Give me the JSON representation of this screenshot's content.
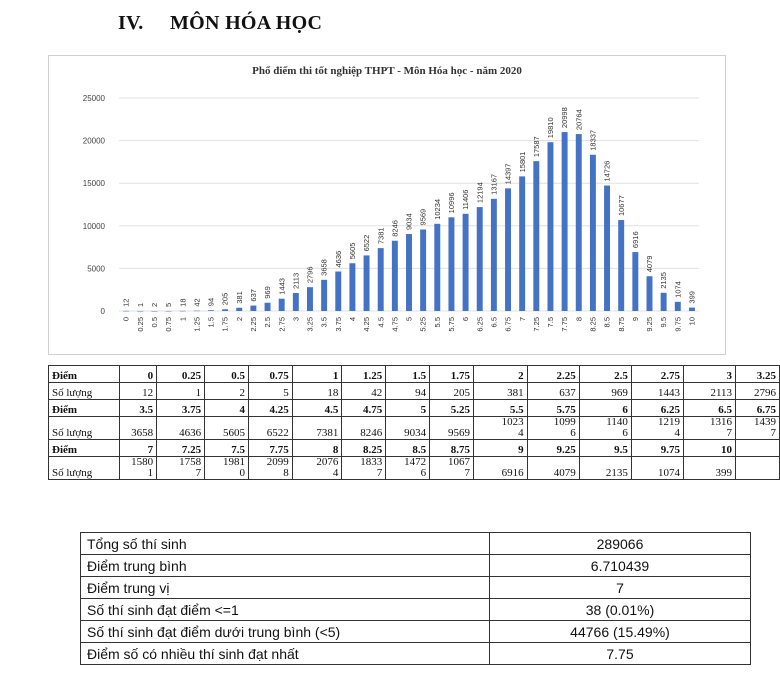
{
  "heading": {
    "number": "IV.",
    "title": "MÔN HÓA HỌC"
  },
  "chart_data": {
    "type": "bar",
    "title": "Phổ điểm thi tốt nghiệp THPT - Môn Hóa học - năm 2020",
    "categories": [
      "0",
      "0.25",
      "0.5",
      "0.75",
      "1",
      "1.25",
      "1.5",
      "1.75",
      "2",
      "2.25",
      "2.5",
      "2.75",
      "3",
      "3.25",
      "3.5",
      "3.75",
      "4",
      "4.25",
      "4.5",
      "4.75",
      "5",
      "5.25",
      "5.5",
      "5.75",
      "6",
      "6.25",
      "6.5",
      "6.75",
      "7",
      "7.25",
      "7.5",
      "7.75",
      "8",
      "8.25",
      "8.5",
      "8.75",
      "9",
      "9.25",
      "9.5",
      "9.75",
      "10"
    ],
    "values": [
      12,
      1,
      2,
      5,
      18,
      42,
      94,
      205,
      381,
      637,
      969,
      1443,
      2113,
      2796,
      3658,
      4636,
      5605,
      6522,
      7381,
      8246,
      9034,
      9569,
      10234,
      10996,
      11406,
      12194,
      13167,
      14397,
      15801,
      17587,
      19810,
      20998,
      20764,
      18337,
      14726,
      10677,
      6916,
      4079,
      2135,
      1074,
      399
    ],
    "yticks": [
      "0",
      "5000",
      "10000",
      "15000",
      "20000",
      "25000"
    ],
    "ylim": [
      0,
      25000
    ],
    "color": "#4472c4"
  },
  "score_table": {
    "rows": [
      {
        "label": "Điểm",
        "cells": [
          "0",
          "0.25",
          "0.5",
          "0.75",
          "1",
          "1.25",
          "1.5",
          "1.75",
          "2",
          "2.25",
          "2.5",
          "2.75",
          "3",
          "3.25"
        ],
        "header": true
      },
      {
        "label": "Số lượng",
        "cells": [
          "12",
          "1",
          "2",
          "5",
          "18",
          "42",
          "94",
          "205",
          "381",
          "637",
          "969",
          "1443",
          "2113",
          "2796"
        ]
      },
      {
        "label": "Điểm",
        "cells": [
          "3.5",
          "3.75",
          "4",
          "4.25",
          "4.5",
          "4.75",
          "5",
          "5.25",
          "5.5",
          "5.75",
          "6",
          "6.25",
          "6.5",
          "6.75"
        ],
        "header": true
      },
      {
        "label": "Số lượng",
        "cells": [
          "3658",
          "4636",
          "5605",
          "6522",
          "7381",
          "8246",
          "9034",
          "9569",
          "1023\n4",
          "1099\n6",
          "1140\n6",
          "1219\n4",
          "1316\n7",
          "1439\n7"
        ]
      },
      {
        "label": "Điểm",
        "cells": [
          "7",
          "7.25",
          "7.5",
          "7.75",
          "8",
          "8.25",
          "8.5",
          "8.75",
          "9",
          "9.25",
          "9.5",
          "9.75",
          "10",
          ""
        ],
        "header": true
      },
      {
        "label": "Số lượng",
        "cells": [
          "1580\n1",
          "1758\n7",
          "1981\n0",
          "2099\n8",
          "2076\n4",
          "1833\n7",
          "1472\n6",
          "1067\n7",
          "6916",
          "4079",
          "2135",
          "1074",
          "399",
          ""
        ]
      }
    ]
  },
  "summary": [
    {
      "key": "Tổng số thí sinh",
      "value": "289066"
    },
    {
      "key": "Điểm trung bình",
      "value": "6.710439"
    },
    {
      "key": "Điểm trung vị",
      "value": "7"
    },
    {
      "key": "Số thí sinh đạt điểm <=1",
      "value": "38 (0.01%)"
    },
    {
      "key": "Số thí sinh đạt điểm dưới trung bình (<5)",
      "value": "44766 (15.49%)"
    },
    {
      "key": "Điểm số có nhiều thí sinh đạt nhất",
      "value": "7.75"
    }
  ]
}
